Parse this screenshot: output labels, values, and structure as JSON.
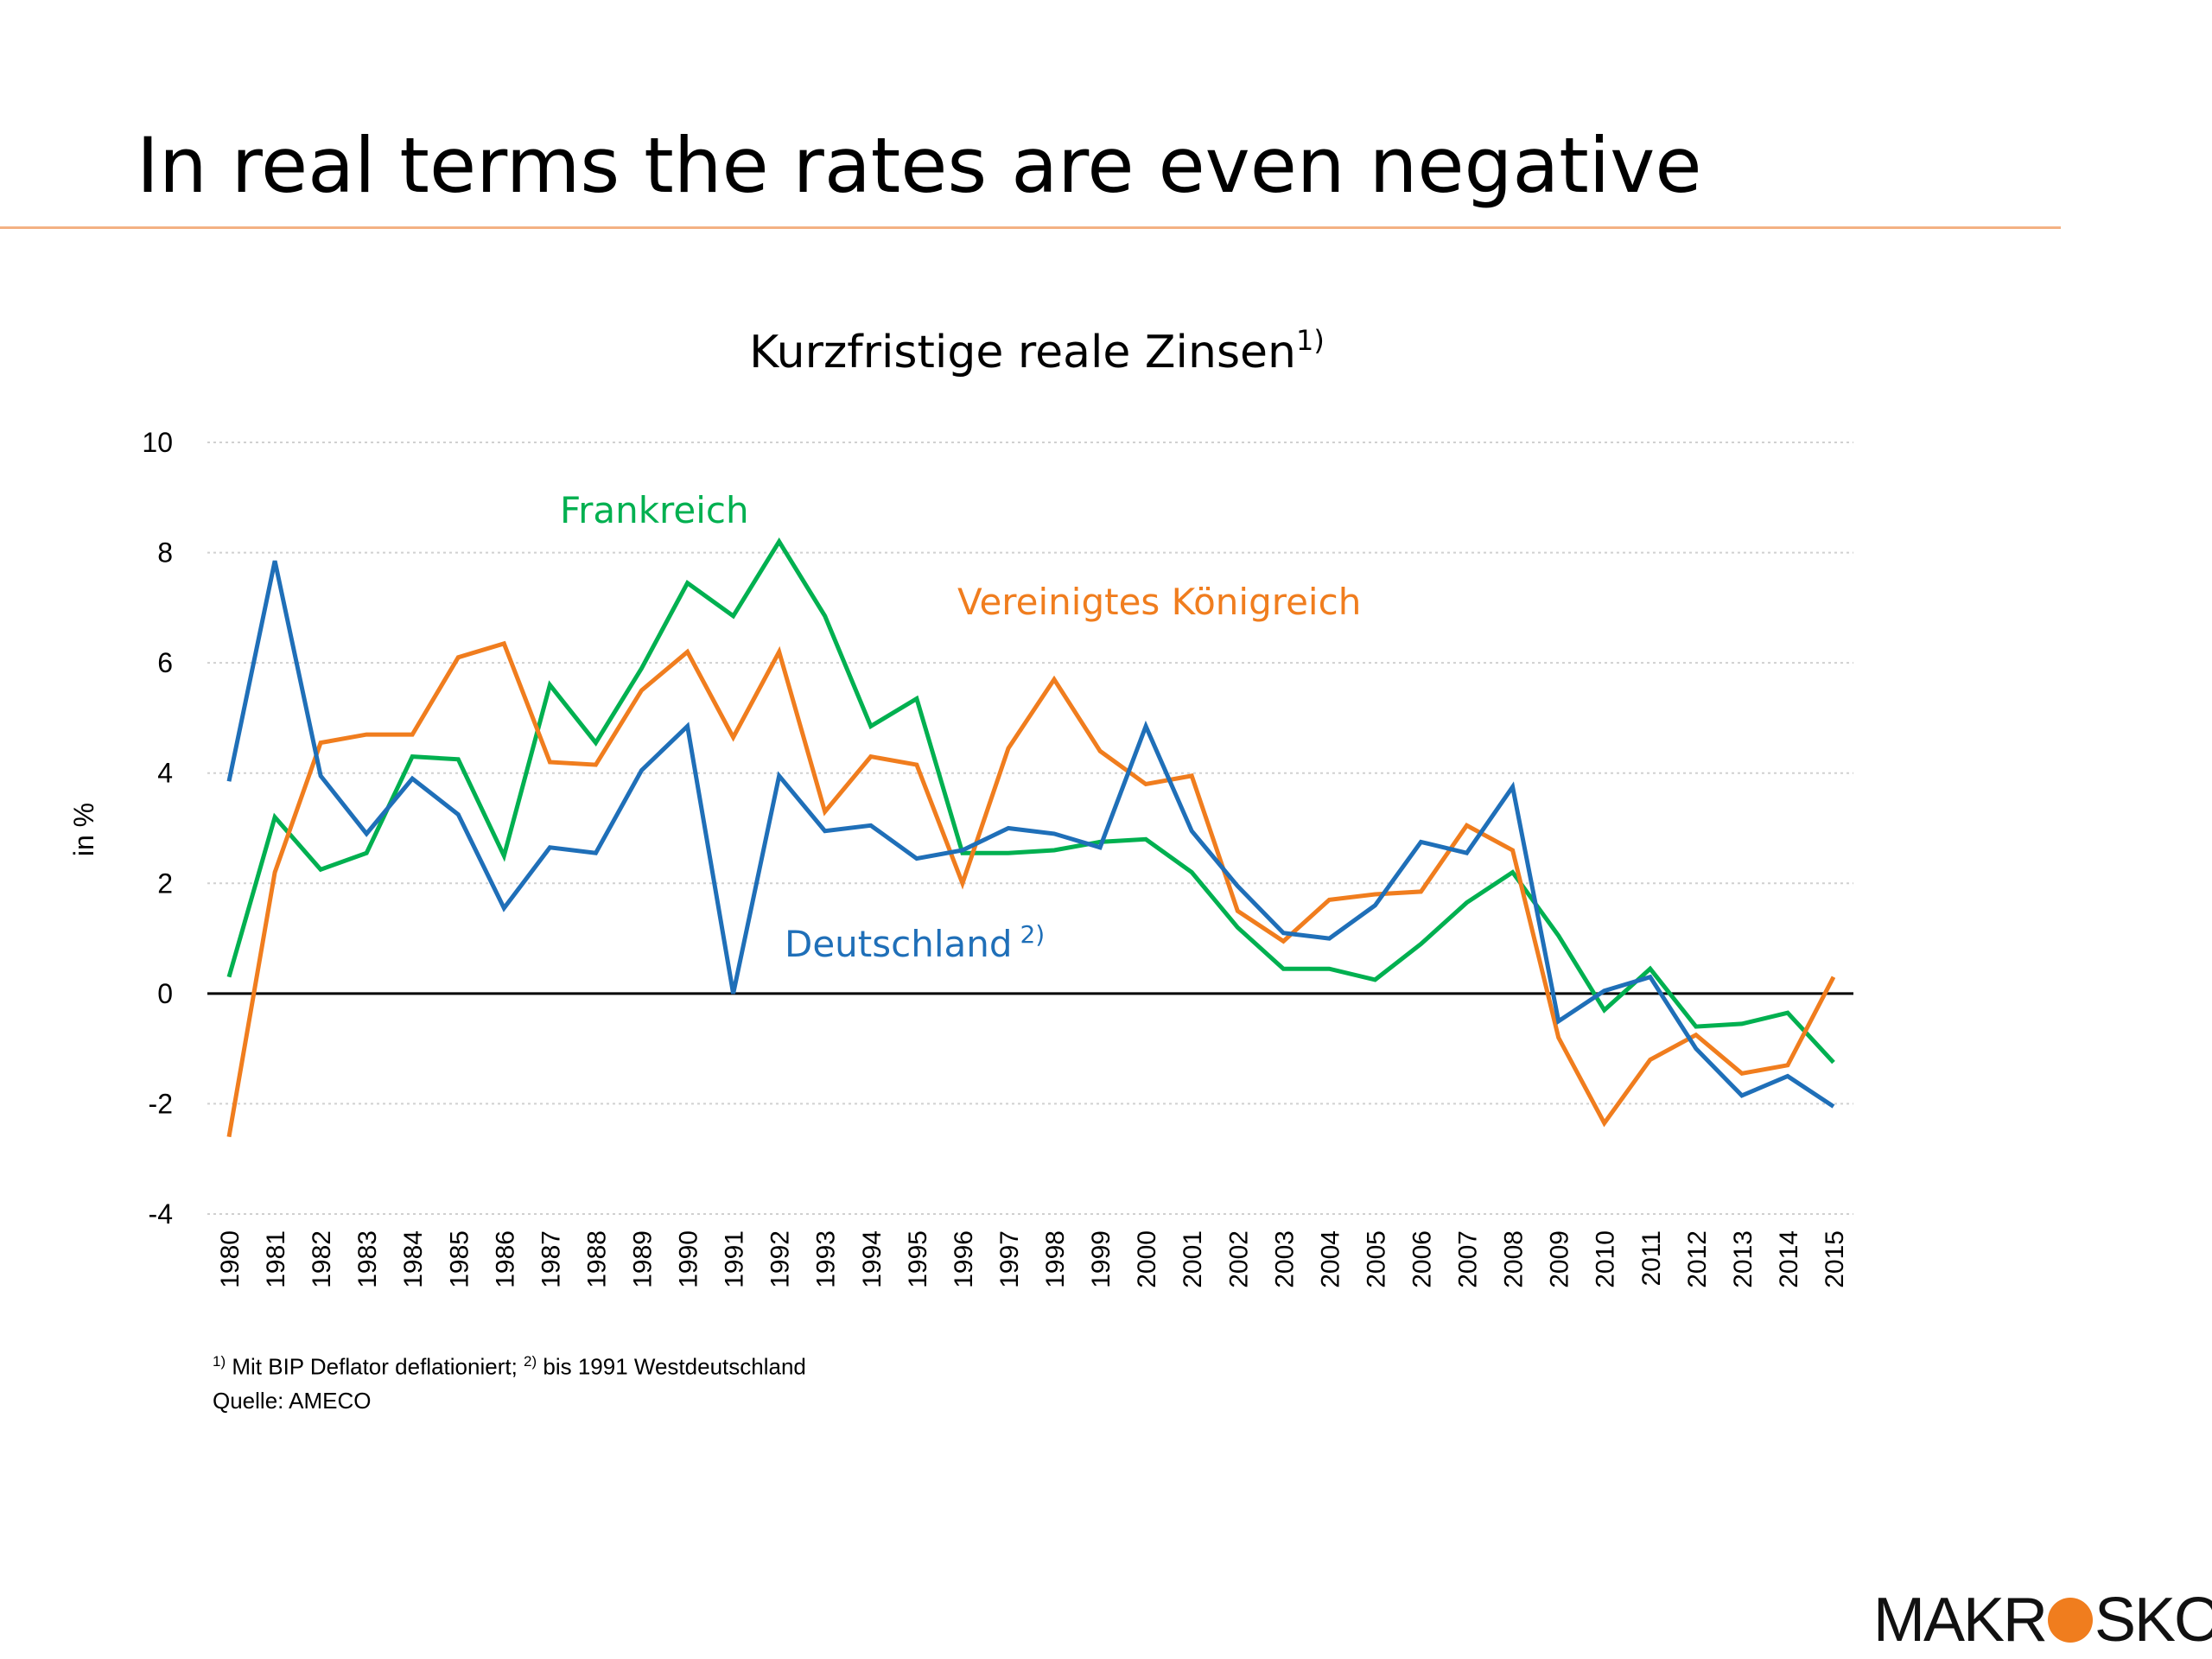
{
  "slide": {
    "title": "In real terms the rates are even negative"
  },
  "footnotes": {
    "line1_mark1": "1)",
    "line1_text1": " Mit BIP Deflator deflationiert; ",
    "line1_mark2": "2)",
    "line1_text2": " bis 1991 Westdeutschland",
    "line2": "Quelle: AMECO"
  },
  "logo": {
    "left": "MAKR",
    "right": "SKOP",
    "dot_color": "#f07d1e"
  },
  "chart_data": {
    "type": "line",
    "title": "Kurzfristige reale Zinsen",
    "title_superscript": "1)",
    "ylabel": "in %",
    "xlabel": "",
    "ylim": [
      -4,
      10
    ],
    "yticks": [
      -4,
      -2,
      0,
      2,
      4,
      6,
      8,
      10
    ],
    "grid": true,
    "categories": [
      "1980",
      "1981",
      "1982",
      "1983",
      "1984",
      "1985",
      "1986",
      "1987",
      "1988",
      "1989",
      "1990",
      "1991",
      "1992",
      "1993",
      "1994",
      "1995",
      "1996",
      "1997",
      "1998",
      "1999",
      "2000",
      "2001",
      "2002",
      "2003",
      "2004",
      "2005",
      "2006",
      "2007",
      "2008",
      "2009",
      "2010",
      "2011",
      "2012",
      "2013",
      "2014",
      "2015"
    ],
    "series": [
      {
        "name": "Frankreich",
        "name_superscript": "",
        "color": "#00b050",
        "values": [
          0.3,
          3.2,
          2.25,
          2.55,
          4.3,
          4.25,
          2.5,
          5.6,
          4.55,
          5.9,
          7.45,
          6.85,
          8.2,
          6.85,
          4.85,
          5.35,
          2.55,
          2.55,
          2.6,
          2.75,
          2.8,
          2.2,
          1.2,
          0.45,
          0.45,
          0.25,
          0.9,
          1.65,
          2.2,
          1.05,
          -0.3,
          0.45,
          -0.6,
          -0.55,
          -0.35,
          -1.25
        ]
      },
      {
        "name": "Vereinigtes Königreich",
        "name_superscript": "",
        "color": "#f07d1e",
        "values": [
          -2.6,
          2.2,
          4.55,
          4.7,
          4.7,
          6.1,
          6.35,
          4.2,
          4.15,
          5.5,
          6.2,
          4.65,
          6.2,
          3.3,
          4.3,
          4.15,
          2.0,
          4.45,
          5.7,
          4.4,
          3.8,
          3.95,
          1.5,
          0.95,
          1.7,
          1.8,
          1.85,
          3.05,
          2.6,
          -0.8,
          -2.35,
          -1.2,
          -0.75,
          -1.45,
          -1.3,
          0.3
        ]
      },
      {
        "name": "Deutschland",
        "name_superscript": "2)",
        "color": "#1f6fb8",
        "values": [
          3.85,
          7.85,
          3.95,
          2.9,
          3.9,
          3.25,
          1.55,
          2.65,
          2.55,
          4.05,
          4.85,
          0.0,
          3.95,
          2.95,
          3.05,
          2.45,
          2.6,
          3.0,
          2.9,
          2.65,
          4.85,
          2.95,
          1.95,
          1.1,
          1.0,
          1.6,
          2.75,
          2.55,
          3.75,
          -0.5,
          0.05,
          0.3,
          -1.0,
          -1.85,
          -1.5,
          -2.05
        ]
      }
    ]
  }
}
